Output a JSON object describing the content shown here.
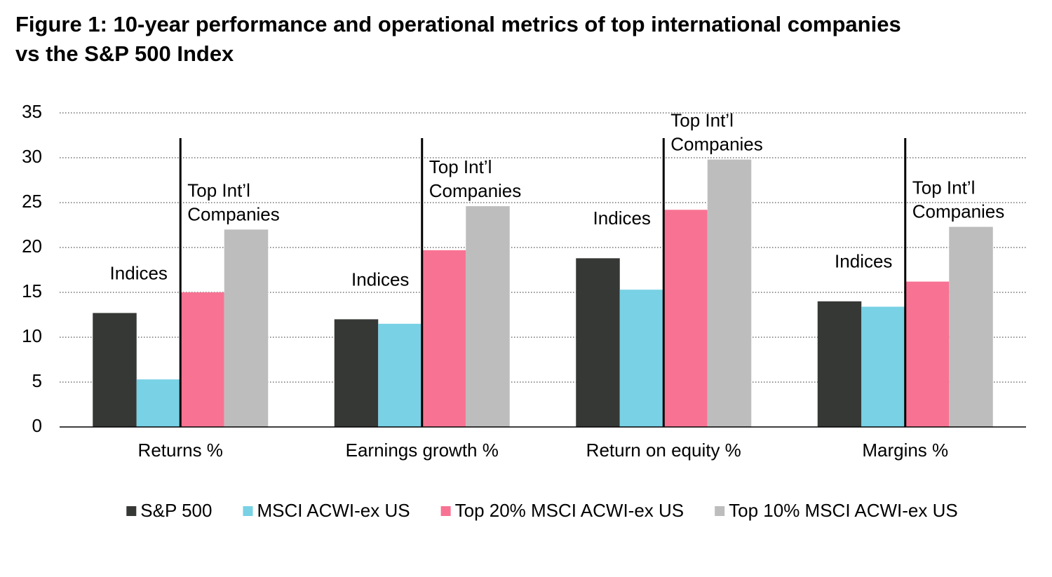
{
  "chart_data": {
    "type": "bar",
    "title": "Figure 1: 10-year performance and operational metrics of top international companies vs the S&P 500 Index",
    "categories": [
      "Returns %",
      "Earnings growth %",
      "Return on equity %",
      "Margins %"
    ],
    "series": [
      {
        "name": "S&P 500",
        "color": "#363835",
        "values": [
          12.7,
          12.0,
          18.8,
          14.0
        ]
      },
      {
        "name": "MSCI ACWI-ex US",
        "color": "#78d1e4",
        "values": [
          5.3,
          11.5,
          15.3,
          13.4
        ]
      },
      {
        "name": "Top 20% MSCI ACWI-ex US",
        "color": "#f87393",
        "values": [
          15.0,
          19.7,
          24.2,
          16.2
        ]
      },
      {
        "name": "Top 10% MSCI ACWI-ex US",
        "color": "#bdbdbd",
        "values": [
          22.0,
          24.6,
          29.8,
          22.3
        ]
      }
    ],
    "annotations": {
      "left": "Indices",
      "right": [
        "Top Int’l",
        "Companies"
      ]
    },
    "ylim": [
      0,
      35
    ],
    "yticks": [
      0,
      5,
      10,
      15,
      20,
      25,
      30,
      35
    ],
    "grid": true,
    "legend": "bottom"
  }
}
